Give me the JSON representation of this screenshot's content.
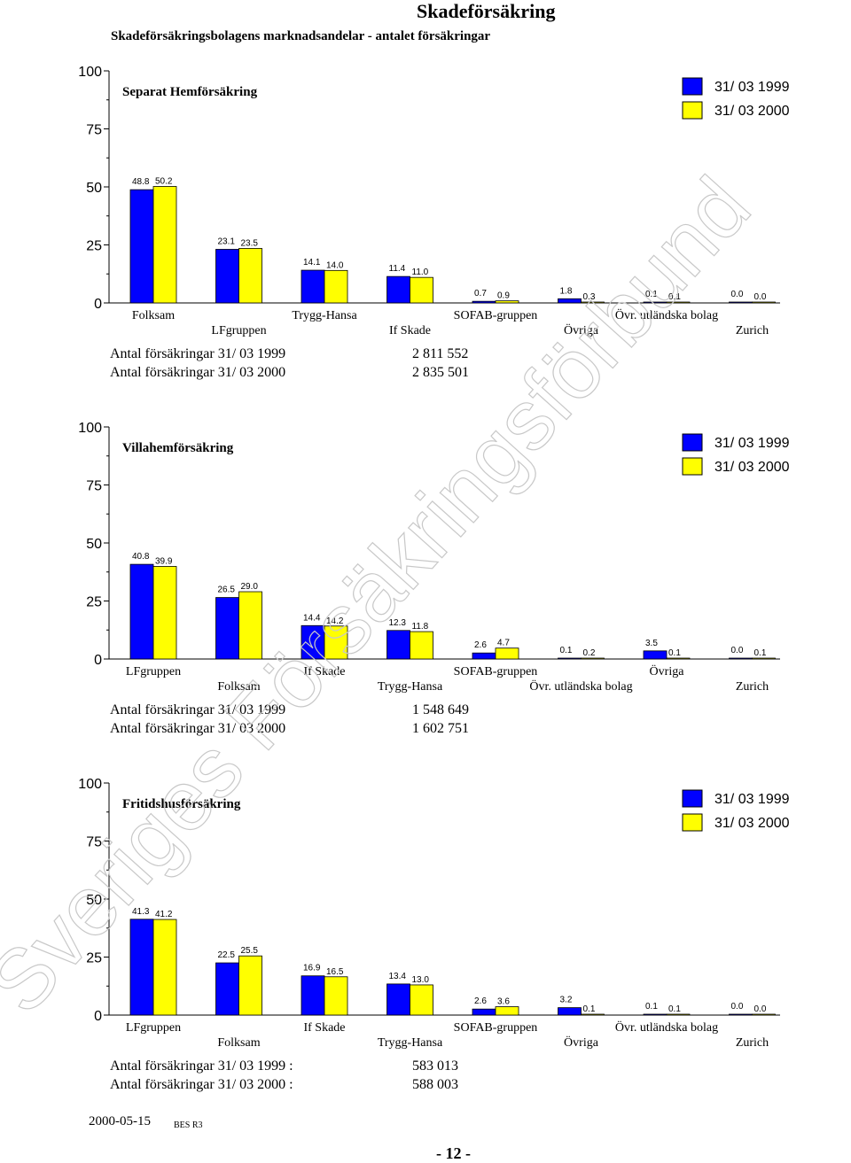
{
  "page": {
    "title": "Skadeförsäkring",
    "subtitle": "Skadeförsäkringsbolagens marknadsandelar - antalet försäkringar",
    "date": "2000-05-15",
    "code": "BES R3",
    "page_number": "- 12 -",
    "watermark": "Sveriges Försäkringsförbund"
  },
  "colors": {
    "series_1999": "#0000ff",
    "series_2000": "#ffff00"
  },
  "chart_data": [
    {
      "type": "bar",
      "title": "Separat Hemförsäkring",
      "ylim": [
        0,
        100
      ],
      "yticks": [
        "0",
        "25",
        "50",
        "75",
        "100"
      ],
      "categories": [
        "Folksam",
        "LFgruppen",
        "Trygg-Hansa",
        "If Skade",
        "SOFAB-gruppen",
        "Övriga",
        "Övr. utländska bolag",
        "Zurich"
      ],
      "series": [
        {
          "name": "31/ 03 1999",
          "values": [
            48.8,
            23.1,
            14.1,
            11.4,
            0.7,
            1.8,
            0.1,
            0.0
          ],
          "labels": [
            "48.8",
            "23.1",
            "14.1",
            "11.4",
            "0.7",
            "1.8",
            "0.1",
            "0.0"
          ]
        },
        {
          "name": "31/ 03 2000",
          "values": [
            50.2,
            23.5,
            14.0,
            11.0,
            0.9,
            0.3,
            0.1,
            0.0
          ],
          "labels": [
            "50.2",
            "23.5",
            "14.0",
            "11.0",
            "0.9",
            "0.3",
            "0.1",
            "0.0"
          ]
        }
      ],
      "totals": [
        {
          "label": "Antal försäkringar 31/ 03 1999",
          "value": "2 811 552"
        },
        {
          "label": "Antal försäkringar 31/ 03 2000",
          "value": "2 835 501"
        }
      ]
    },
    {
      "type": "bar",
      "title": "Villahemförsäkring",
      "ylim": [
        0,
        100
      ],
      "yticks": [
        "0",
        "25",
        "50",
        "75",
        "100"
      ],
      "categories": [
        "LFgruppen",
        "Folksam",
        "If Skade",
        "Trygg-Hansa",
        "SOFAB-gruppen",
        "Övr. utländska bolag",
        "Övriga",
        "Zurich"
      ],
      "series": [
        {
          "name": "31/ 03 1999",
          "values": [
            40.8,
            26.5,
            14.4,
            12.3,
            2.6,
            0.1,
            3.5,
            0.0
          ],
          "labels": [
            "40.8",
            "26.5",
            "14.4",
            "12.3",
            "2.6",
            "0.1",
            "3.5",
            "0.0"
          ]
        },
        {
          "name": "31/ 03 2000",
          "values": [
            39.9,
            29.0,
            14.2,
            11.8,
            4.7,
            0.2,
            0.1,
            0.1
          ],
          "labels": [
            "39.9",
            "29.0",
            "14.2",
            "11.8",
            "4.7",
            "0.2",
            "0.1",
            "0.1"
          ]
        }
      ],
      "totals": [
        {
          "label": "Antal försäkringar 31/ 03 1999",
          "value": "1 548 649"
        },
        {
          "label": "Antal försäkringar 31/ 03 2000",
          "value": "1 602 751"
        }
      ]
    },
    {
      "type": "bar",
      "title": "Fritidshusförsäkring",
      "ylim": [
        0,
        100
      ],
      "yticks": [
        "0",
        "25",
        "50",
        "75",
        "100"
      ],
      "categories": [
        "LFgruppen",
        "Folksam",
        "If Skade",
        "Trygg-Hansa",
        "SOFAB-gruppen",
        "Övriga",
        "Övr. utländska bolag",
        "Zurich"
      ],
      "series": [
        {
          "name": "31/ 03 1999",
          "values": [
            41.3,
            22.5,
            16.9,
            13.4,
            2.6,
            3.2,
            0.1,
            0.0
          ],
          "labels": [
            "41.3",
            "22.5",
            "16.9",
            "13.4",
            "2.6",
            "3.2",
            "0.1",
            "0.0"
          ]
        },
        {
          "name": "31/ 03 2000",
          "values": [
            41.2,
            25.5,
            16.5,
            13.0,
            3.6,
            0.1,
            0.1,
            0.0
          ],
          "labels": [
            "41.2",
            "25.5",
            "16.5",
            "13.0",
            "3.6",
            "0.1",
            "0.1",
            "0.0"
          ]
        }
      ],
      "totals": [
        {
          "label": "Antal försäkringar 31/ 03 1999   :",
          "value": "583 013"
        },
        {
          "label": "Antal försäkringar 31/ 03 2000   :",
          "value": "588 003"
        }
      ]
    }
  ]
}
